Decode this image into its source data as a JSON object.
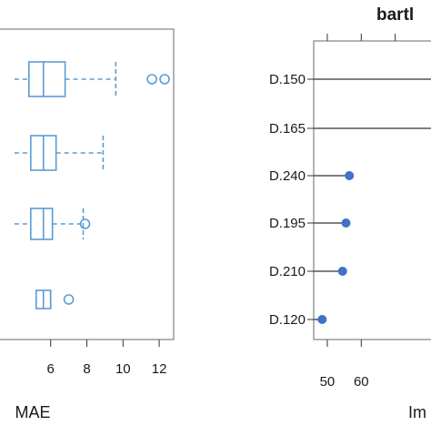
{
  "colors": {
    "box": "#5b9bd5",
    "dot": "#3f73c7",
    "stem": "#555555",
    "frame": "#8a8a8a"
  },
  "chart_data": [
    {
      "type": "box",
      "xlabel": "MAE",
      "x_ticks": [
        "6",
        "8",
        "10",
        "12"
      ],
      "xlim": [
        3,
        12.8
      ],
      "boxes": [
        {
          "q1": 4.8,
          "median": 5.6,
          "q3": 6.8,
          "whisker_low": 4.0,
          "whisker_high": 9.6,
          "outliers": [
            11.6,
            12.3
          ]
        },
        {
          "q1": 4.9,
          "median": 5.6,
          "q3": 6.3,
          "whisker_low": 4.0,
          "whisker_high": 8.9,
          "outliers": []
        },
        {
          "q1": 4.9,
          "median": 5.6,
          "q3": 6.1,
          "whisker_low": 4.0,
          "whisker_high": 7.8,
          "outliers": [
            7.9
          ]
        },
        {
          "q1": 5.2,
          "median": 5.6,
          "q3": 6.0,
          "whisker_low": 5.2,
          "whisker_high": 6.0,
          "outliers": [
            7.0
          ]
        }
      ]
    },
    {
      "type": "dot",
      "title": "bartl",
      "xlabel": "Im",
      "x_ticks": [
        "50",
        "60"
      ],
      "xlim": [
        46,
        80
      ],
      "categories": [
        "D.150",
        "D.165",
        "D.240",
        "D.195",
        "D.210",
        "D.120"
      ],
      "values": [
        85,
        85,
        56.5,
        55.5,
        54.5,
        48.5
      ]
    }
  ]
}
